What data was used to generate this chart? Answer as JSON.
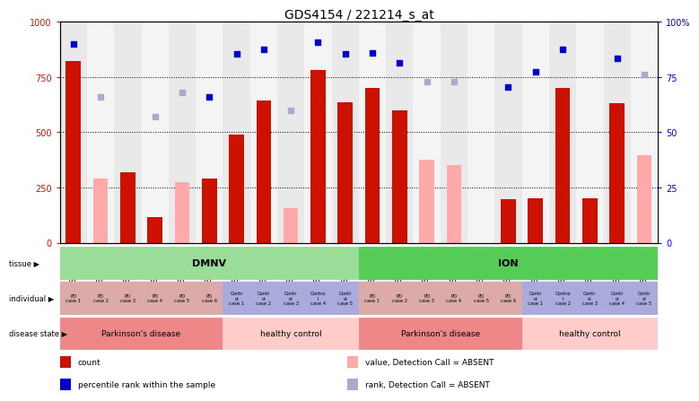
{
  "title": "GDS4154 / 221214_s_at",
  "samples": [
    "GSM488119",
    "GSM488121",
    "GSM488123",
    "GSM488125",
    "GSM488127",
    "GSM488129",
    "GSM488111",
    "GSM488113",
    "GSM488115",
    "GSM488117",
    "GSM488131",
    "GSM488120",
    "GSM488122",
    "GSM488124",
    "GSM488126",
    "GSM488128",
    "GSM488130",
    "GSM488112",
    "GSM488114",
    "GSM488116",
    "GSM488118",
    "GSM488132"
  ],
  "count_values": [
    820,
    null,
    320,
    115,
    null,
    290,
    490,
    645,
    null,
    780,
    635,
    700,
    600,
    null,
    null,
    null,
    195,
    200,
    700,
    200,
    630,
    null
  ],
  "absent_values": [
    null,
    290,
    null,
    null,
    275,
    null,
    null,
    null,
    155,
    null,
    null,
    null,
    null,
    375,
    350,
    null,
    null,
    null,
    null,
    null,
    null,
    395
  ],
  "rank_present": [
    900,
    null,
    null,
    null,
    null,
    660,
    855,
    875,
    null,
    905,
    855,
    860,
    815,
    null,
    null,
    null,
    705,
    775,
    875,
    null,
    835,
    null
  ],
  "rank_absent": [
    null,
    660,
    null,
    570,
    680,
    null,
    null,
    null,
    600,
    null,
    null,
    null,
    null,
    730,
    730,
    null,
    null,
    null,
    null,
    null,
    null,
    760
  ],
  "bar_color_present": "#cc1100",
  "bar_color_absent": "#ffaaaa",
  "dot_color_present": "#0000cc",
  "dot_color_absent": "#aaaacc",
  "tissue_groups": [
    {
      "label": "DMNV",
      "start": 0,
      "end": 10,
      "color": "#99dd99"
    },
    {
      "label": "ION",
      "start": 11,
      "end": 21,
      "color": "#44bb44"
    }
  ],
  "individual_assignments": [
    0,
    0,
    0,
    0,
    0,
    0,
    1,
    1,
    1,
    1,
    1,
    0,
    0,
    0,
    0,
    0,
    0,
    1,
    1,
    1,
    1,
    1
  ],
  "ind_labels": [
    "PD\ncase 1",
    "PD\ncase 2",
    "PD\ncase 3",
    "PD\ncase 4",
    "PD\ncase 5",
    "PD\ncase 6",
    "Contr\nol\ncase 1",
    "Contr\nol\ncase 2",
    "Contr\nol\ncase 3",
    "Contro\nl\ncase 4",
    "Contr\nol\ncase 5",
    "PD\ncase 1",
    "PD\ncase 2",
    "PD\ncase 3",
    "PD\ncase 4",
    "PD\ncase 5",
    "PD\ncase 6",
    "Contr\nol\ncase 1",
    "Contro\nl\ncase 2",
    "Contr\nol\ncase 3",
    "Contr\nol\ncase 4",
    "Contr\nol\ncase 5"
  ],
  "ind_color_pd": "#ddaaaa",
  "ind_color_ctrl": "#aaaadd",
  "disease_groups": [
    {
      "label": "Parkinson's disease",
      "start": 0,
      "end": 5,
      "color": "#ee8888"
    },
    {
      "label": "healthy control",
      "start": 6,
      "end": 10,
      "color": "#ffcccc"
    },
    {
      "label": "Parkinson's disease",
      "start": 11,
      "end": 16,
      "color": "#ee8888"
    },
    {
      "label": "healthy control",
      "start": 17,
      "end": 21,
      "color": "#ffcccc"
    }
  ],
  "legend_items": [
    {
      "label": "count",
      "color": "#cc1100"
    },
    {
      "label": "percentile rank within the sample",
      "color": "#0000cc"
    },
    {
      "label": "value, Detection Call = ABSENT",
      "color": "#ffaaaa"
    },
    {
      "label": "rank, Detection Call = ABSENT",
      "color": "#aaaacc"
    }
  ]
}
